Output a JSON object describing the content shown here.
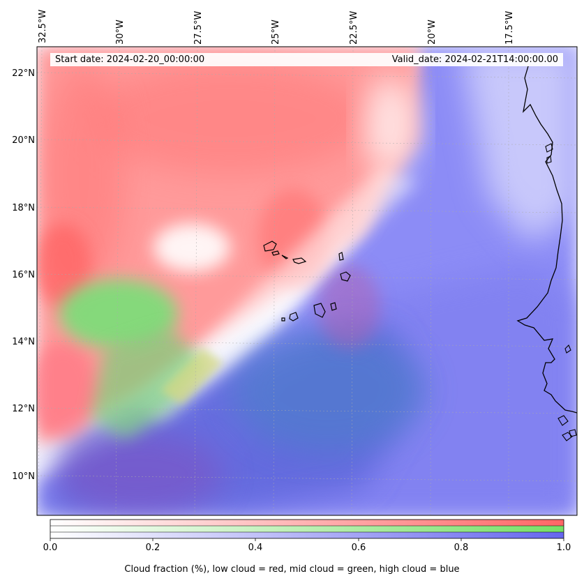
{
  "map": {
    "longitude_labels": [
      "32.5°W",
      "30°W",
      "27.5°W",
      "25°W",
      "22.5°W",
      "20°W",
      "17.5°W"
    ],
    "latitude_labels": [
      "22°N",
      "20°N",
      "18°N",
      "16°N",
      "14°N",
      "12°N",
      "10°N"
    ],
    "start_date": "Start date: 2024-02-20_00:00:00",
    "valid_date": "Valid_date: 2024-02-21T14:00:00.00",
    "colors": {
      "low_cloud": "#ff5a5a",
      "mid_cloud": "#6ee06e",
      "high_cloud": "#5a5af0",
      "coastline": "#000000"
    }
  },
  "colorbar": {
    "ticks": [
      "0.0",
      "0.2",
      "0.4",
      "0.6",
      "0.8",
      "1.0"
    ],
    "title": "Cloud fraction (%), low cloud = red, mid cloud = green, high cloud = blue",
    "range": [
      0.0,
      1.0
    ]
  }
}
